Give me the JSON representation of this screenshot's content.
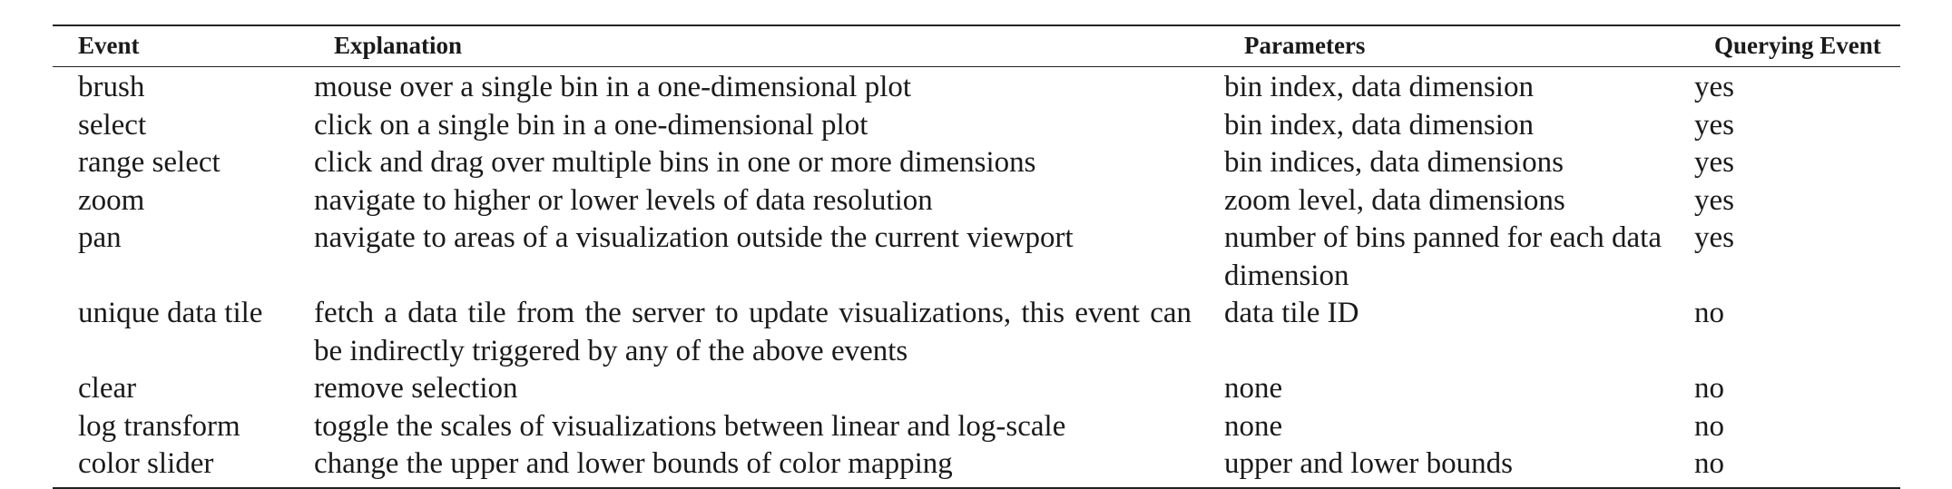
{
  "table": {
    "headers": [
      "Event",
      "Explanation",
      "Parameters",
      "Querying Event"
    ],
    "rows": [
      {
        "event": "brush",
        "explanation": "mouse over a single bin in a one-dimensional plot",
        "parameters": "bin index, data dimension",
        "querying": "yes"
      },
      {
        "event": "select",
        "explanation": "click on a single bin in a one-dimensional plot",
        "parameters": "bin index, data dimension",
        "querying": "yes"
      },
      {
        "event": "range select",
        "explanation": "click and drag over multiple bins in one or more dimensions",
        "parameters": "bin indices, data dimensions",
        "querying": "yes"
      },
      {
        "event": "zoom",
        "explanation": "navigate to higher or lower levels of data resolution",
        "parameters": "zoom level, data dimensions",
        "querying": "yes"
      },
      {
        "event": "pan",
        "explanation": "navigate to areas of a visualization outside the current viewport",
        "parameters": "number of bins panned for each data dimension",
        "querying": "yes"
      },
      {
        "event": "unique data tile",
        "explanation": "fetch a data tile from the server to update visualizations, this event can be indirectly triggered by any of the above events",
        "parameters": "data tile ID",
        "querying": "no"
      },
      {
        "event": "clear",
        "explanation": "remove selection",
        "parameters": "none",
        "querying": "no"
      },
      {
        "event": "log transform",
        "explanation": "toggle the scales of visualizations between linear and log-scale",
        "parameters": "none",
        "querying": "no"
      },
      {
        "event": "color slider",
        "explanation": "change the upper and lower bounds of color mapping",
        "parameters": "upper and lower bounds",
        "querying": "no"
      }
    ]
  }
}
